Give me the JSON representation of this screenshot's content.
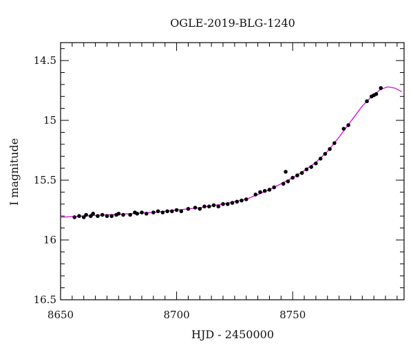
{
  "chart_data": {
    "type": "scatter",
    "title": "OGLE-2019-BLG-1240",
    "xlabel": "HJD - 2450000",
    "ylabel": "I magnitude",
    "xlim": [
      8650,
      8798
    ],
    "ylim": [
      16.5,
      14.35
    ],
    "y_inverted": true,
    "grid": false,
    "x_ticks": [
      {
        "value": 8650,
        "label": "8650"
      },
      {
        "value": 8700,
        "label": "8700"
      },
      {
        "value": 8750,
        "label": "8750"
      }
    ],
    "y_ticks": [
      {
        "value": 14.5,
        "label": "14.5"
      },
      {
        "value": 15,
        "label": "15"
      },
      {
        "value": 15.5,
        "label": "15.5"
      },
      {
        "value": 16,
        "label": "16"
      },
      {
        "value": 16.5,
        "label": "16.5"
      }
    ],
    "series": [
      {
        "kind": "observations",
        "color": "#000000",
        "points": [
          [
            8656,
            15.81
          ],
          [
            8658,
            15.8
          ],
          [
            8660,
            15.81
          ],
          [
            8661,
            15.79
          ],
          [
            8663,
            15.8
          ],
          [
            8664,
            15.78
          ],
          [
            8666,
            15.8
          ],
          [
            8668,
            15.79
          ],
          [
            8670,
            15.8
          ],
          [
            8672,
            15.8
          ],
          [
            8674,
            15.79
          ],
          [
            8675,
            15.78
          ],
          [
            8677,
            15.79
          ],
          [
            8680,
            15.79
          ],
          [
            8682,
            15.77
          ],
          [
            8683,
            15.78
          ],
          [
            8685,
            15.77
          ],
          [
            8687,
            15.78
          ],
          [
            8690,
            15.77
          ],
          [
            8692,
            15.76
          ],
          [
            8694,
            15.77
          ],
          [
            8696,
            15.76
          ],
          [
            8698,
            15.76
          ],
          [
            8700,
            15.75
          ],
          [
            8702,
            15.76
          ],
          [
            8705,
            15.74
          ],
          [
            8708,
            15.73
          ],
          [
            8710,
            15.74
          ],
          [
            8712,
            15.72
          ],
          [
            8714,
            15.72
          ],
          [
            8716,
            15.71
          ],
          [
            8718,
            15.72
          ],
          [
            8720,
            15.7
          ],
          [
            8722,
            15.7
          ],
          [
            8724,
            15.69
          ],
          [
            8726,
            15.68
          ],
          [
            8728,
            15.67
          ],
          [
            8730,
            15.66
          ],
          [
            8734,
            15.62
          ],
          [
            8736,
            15.6
          ],
          [
            8738,
            15.59
          ],
          [
            8740,
            15.58
          ],
          [
            8742,
            15.56
          ],
          [
            8746,
            15.53
          ],
          [
            8747,
            15.43
          ],
          [
            8748,
            15.51
          ],
          [
            8750,
            15.48
          ],
          [
            8752,
            15.46
          ],
          [
            8754,
            15.44
          ],
          [
            8756,
            15.41
          ],
          [
            8758,
            15.39
          ],
          [
            8760,
            15.36
          ],
          [
            8762,
            15.32
          ],
          [
            8764,
            15.28
          ],
          [
            8766,
            15.24
          ],
          [
            8768,
            15.19
          ],
          [
            8772,
            15.07
          ],
          [
            8774,
            15.04
          ],
          [
            8782,
            14.84
          ],
          [
            8784,
            14.8
          ],
          [
            8785,
            14.79
          ],
          [
            8786,
            14.78
          ],
          [
            8788,
            14.73
          ]
        ]
      },
      {
        "kind": "model",
        "color": "#e000e0",
        "points": [
          [
            8650,
            15.81
          ],
          [
            8660,
            15.8
          ],
          [
            8670,
            15.79
          ],
          [
            8680,
            15.78
          ],
          [
            8690,
            15.77
          ],
          [
            8700,
            15.75
          ],
          [
            8710,
            15.73
          ],
          [
            8720,
            15.7
          ],
          [
            8730,
            15.66
          ],
          [
            8740,
            15.58
          ],
          [
            8750,
            15.48
          ],
          [
            8755,
            15.42
          ],
          [
            8760,
            15.35
          ],
          [
            8765,
            15.26
          ],
          [
            8770,
            15.14
          ],
          [
            8775,
            15.01
          ],
          [
            8780,
            14.88
          ],
          [
            8784,
            14.8
          ],
          [
            8788,
            14.74
          ],
          [
            8791,
            14.72
          ],
          [
            8794,
            14.73
          ],
          [
            8797,
            14.76
          ]
        ]
      }
    ]
  }
}
